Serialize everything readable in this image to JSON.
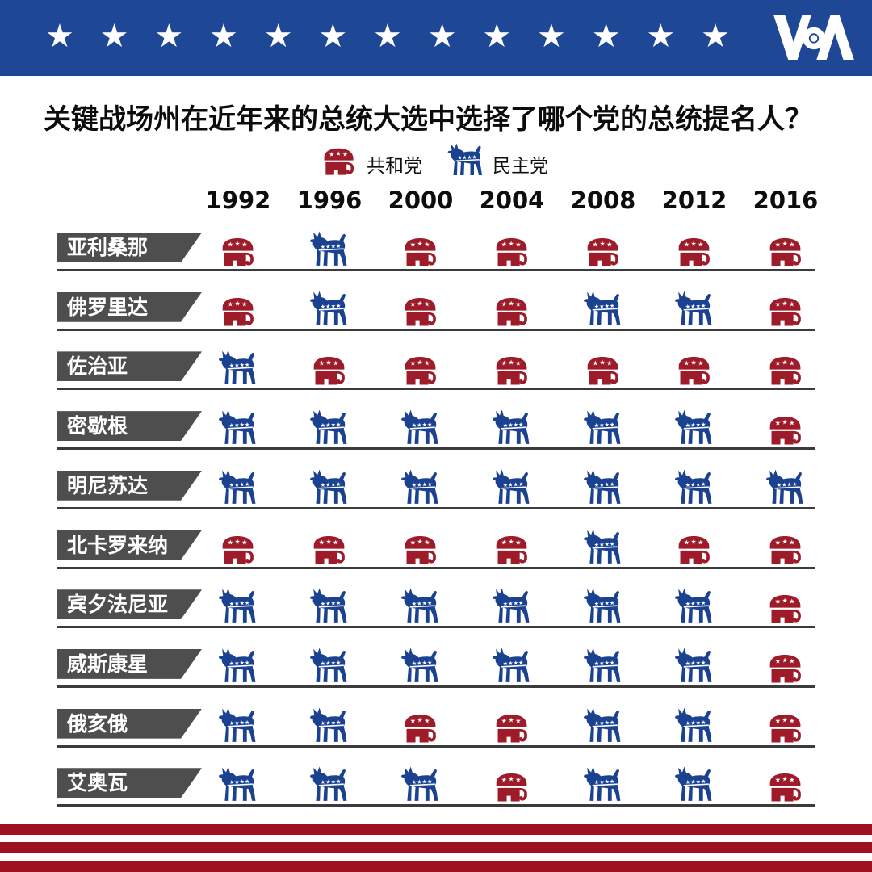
{
  "banner": {
    "star_count": 13,
    "logo": "VOA",
    "bg_color": "#1e4796"
  },
  "title": "关键战场州在近年来的总统大选中选择了哪个党的总统提名人？",
  "legend": {
    "republican": {
      "label": "共和党",
      "party": "R",
      "color": "#9e1b29",
      "icon": "elephant-icon"
    },
    "democrat": {
      "label": "民主党",
      "party": "D",
      "color": "#1b4191",
      "icon": "donkey-icon"
    }
  },
  "chart_data": {
    "type": "table",
    "title": "关键战场州在近年来的总统大选中选择了哪个党的总统提名人？",
    "columns": [
      "1992",
      "1996",
      "2000",
      "2004",
      "2008",
      "2012",
      "2016"
    ],
    "party_labels": {
      "R": "共和党",
      "D": "民主党"
    },
    "party_colors": {
      "R": "#9e1b29",
      "D": "#1b4191"
    },
    "rows": [
      {
        "state": "亚利桑那",
        "results": [
          "R",
          "D",
          "R",
          "R",
          "R",
          "R",
          "R"
        ]
      },
      {
        "state": "佛罗里达",
        "results": [
          "R",
          "D",
          "R",
          "R",
          "D",
          "D",
          "R"
        ]
      },
      {
        "state": "佐治亚",
        "results": [
          "D",
          "R",
          "R",
          "R",
          "R",
          "R",
          "R"
        ]
      },
      {
        "state": "密歇根",
        "results": [
          "D",
          "D",
          "D",
          "D",
          "D",
          "D",
          "R"
        ]
      },
      {
        "state": "明尼苏达",
        "results": [
          "D",
          "D",
          "D",
          "D",
          "D",
          "D",
          "D"
        ]
      },
      {
        "state": "北卡罗来纳",
        "results": [
          "R",
          "R",
          "R",
          "R",
          "D",
          "R",
          "R"
        ]
      },
      {
        "state": "宾夕法尼亚",
        "results": [
          "D",
          "D",
          "D",
          "D",
          "D",
          "D",
          "R"
        ]
      },
      {
        "state": "威斯康星",
        "results": [
          "D",
          "D",
          "D",
          "D",
          "D",
          "D",
          "R"
        ]
      },
      {
        "state": "俄亥俄",
        "results": [
          "D",
          "D",
          "R",
          "R",
          "D",
          "D",
          "R"
        ]
      },
      {
        "state": "艾奥瓦",
        "results": [
          "D",
          "D",
          "D",
          "R",
          "D",
          "D",
          "R"
        ]
      }
    ]
  },
  "footer": {
    "stripe_count": 3,
    "stripe_color": "#9d1120"
  }
}
